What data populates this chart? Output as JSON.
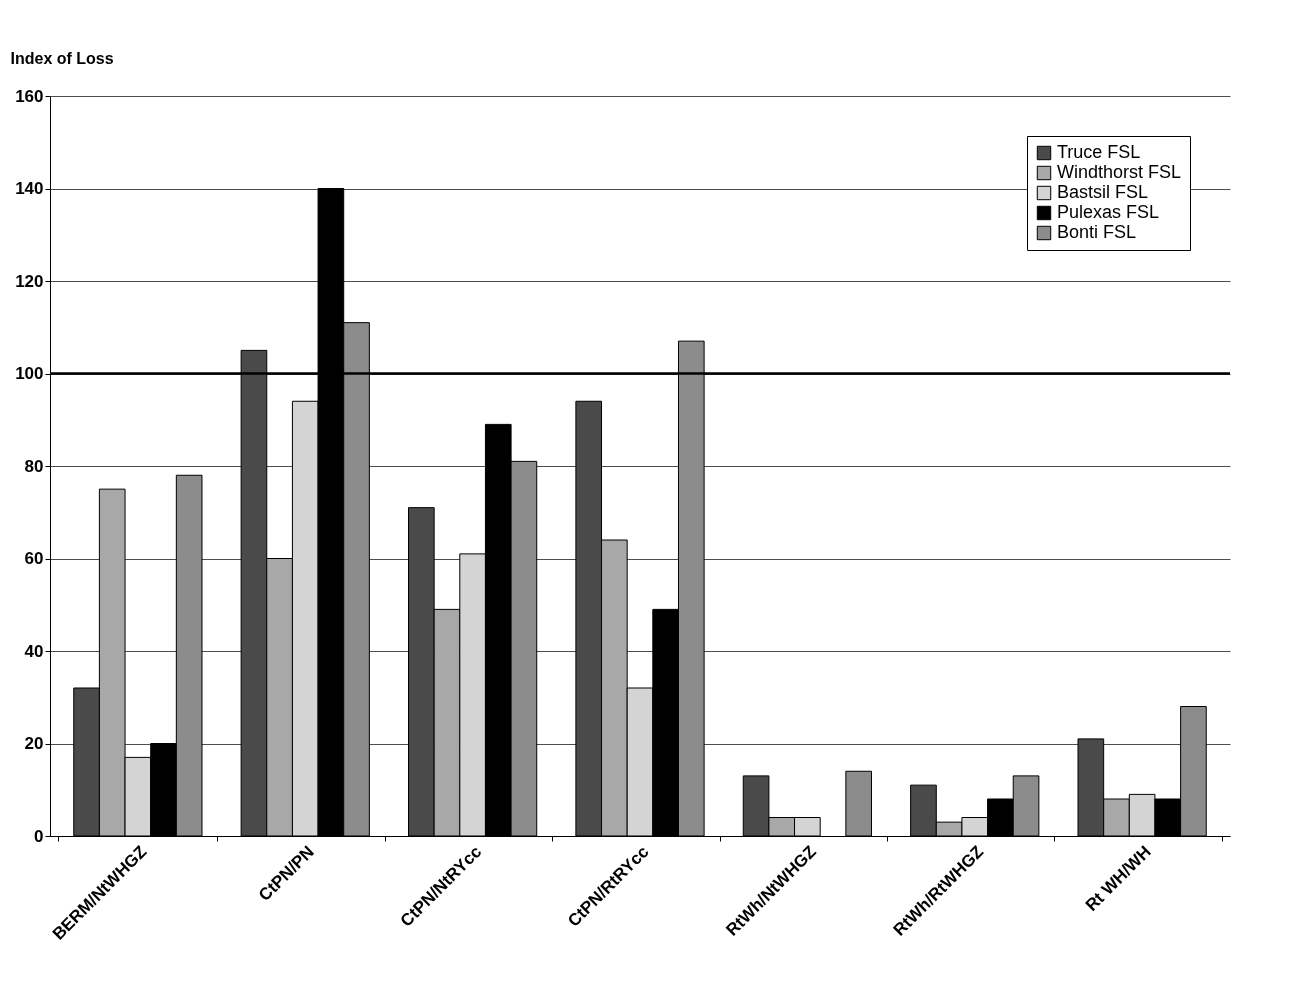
{
  "chart_data": {
    "type": "bar",
    "ylabel": "Index of Loss",
    "categories": [
      "BERM/NtWHGZ",
      "CtPN/PN",
      "CtPN/NtRYcc",
      "CtPN/RtRYcc",
      "RtWh/NtWHGZ",
      "RtWh/RtWHGZ",
      "Rt WH/WH"
    ],
    "series": [
      {
        "name": "Truce FSL",
        "color": "#4a4a4a",
        "values": [
          32,
          105,
          71,
          94,
          13,
          11,
          21
        ]
      },
      {
        "name": "Windthorst FSL",
        "color": "#a8a8a8",
        "values": [
          75,
          60,
          49,
          64,
          4,
          3,
          8
        ]
      },
      {
        "name": "Bastsil FSL",
        "color": "#d4d4d4",
        "values": [
          17,
          94,
          61,
          32,
          4,
          4,
          9
        ]
      },
      {
        "name": "Pulexas FSL",
        "color": "#000000",
        "values": [
          20,
          140,
          89,
          49,
          null,
          8,
          8
        ]
      },
      {
        "name": "Bonti FSL",
        "color": "#8c8c8c",
        "values": [
          78,
          111,
          81,
          107,
          14,
          13,
          28
        ]
      }
    ],
    "ylim": [
      0,
      160
    ],
    "yticks": [
      0,
      20,
      40,
      60,
      80,
      100,
      120,
      140,
      160
    ],
    "grid": "y",
    "legend": "top right",
    "ref_lines": [
      {
        "axis": "y",
        "value": 100,
        "color": "#000000"
      }
    ]
  }
}
